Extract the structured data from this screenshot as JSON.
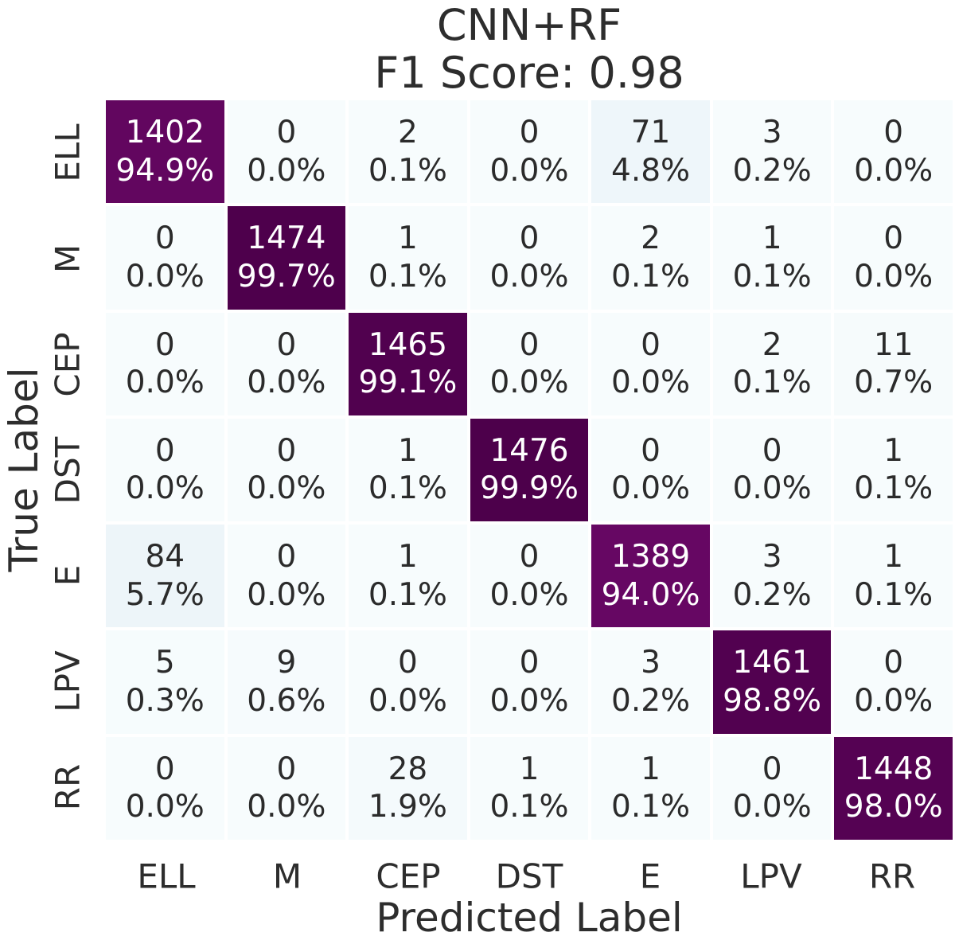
{
  "title": {
    "line1": "CNN+RF",
    "line2": "F1 Score: 0.98"
  },
  "chart_data": {
    "type": "heatmap",
    "title_line1": "CNN+RF",
    "title_line2": "F1 Score: 0.98",
    "xlabel": "Predicted Label",
    "ylabel": "True Label",
    "categories": [
      "ELL",
      "M",
      "CEP",
      "DST",
      "E",
      "LPV",
      "RR"
    ],
    "rows": [
      {
        "label": "ELL",
        "counts": [
          1402,
          0,
          2,
          0,
          71,
          3,
          0
        ],
        "percents": [
          "94.9%",
          "0.0%",
          "0.1%",
          "0.0%",
          "4.8%",
          "0.2%",
          "0.0%"
        ]
      },
      {
        "label": "M",
        "counts": [
          0,
          1474,
          1,
          0,
          2,
          1,
          0
        ],
        "percents": [
          "0.0%",
          "99.7%",
          "0.1%",
          "0.0%",
          "0.1%",
          "0.1%",
          "0.0%"
        ]
      },
      {
        "label": "CEP",
        "counts": [
          0,
          0,
          1465,
          0,
          0,
          2,
          11
        ],
        "percents": [
          "0.0%",
          "0.0%",
          "99.1%",
          "0.0%",
          "0.0%",
          "0.1%",
          "0.7%"
        ]
      },
      {
        "label": "DST",
        "counts": [
          0,
          0,
          1,
          1476,
          0,
          0,
          1
        ],
        "percents": [
          "0.0%",
          "0.0%",
          "0.1%",
          "99.9%",
          "0.0%",
          "0.0%",
          "0.1%"
        ]
      },
      {
        "label": "E",
        "counts": [
          84,
          0,
          1,
          0,
          1389,
          3,
          1
        ],
        "percents": [
          "5.7%",
          "0.0%",
          "0.1%",
          "0.0%",
          "94.0%",
          "0.2%",
          "0.1%"
        ]
      },
      {
        "label": "LPV",
        "counts": [
          5,
          9,
          0,
          0,
          3,
          1461,
          0
        ],
        "percents": [
          "0.3%",
          "0.6%",
          "0.0%",
          "0.0%",
          "0.2%",
          "98.8%",
          "0.0%"
        ]
      },
      {
        "label": "RR",
        "counts": [
          0,
          0,
          28,
          1,
          1,
          0,
          1448
        ],
        "percents": [
          "0.0%",
          "0.0%",
          "1.9%",
          "0.1%",
          "0.1%",
          "0.0%",
          "98.0%"
        ]
      }
    ],
    "value_range": [
      0,
      100
    ],
    "grid": false,
    "legend": "none",
    "colormap": {
      "name": "BuPu",
      "stops": [
        [
          0.0,
          "#f7fcfd"
        ],
        [
          0.125,
          "#e0ecf4"
        ],
        [
          0.25,
          "#bfd3e6"
        ],
        [
          0.375,
          "#9ebcda"
        ],
        [
          0.5,
          "#8c96c6"
        ],
        [
          0.625,
          "#8c6bb1"
        ],
        [
          0.75,
          "#88419d"
        ],
        [
          0.875,
          "#810f7c"
        ],
        [
          1.0,
          "#4d004b"
        ]
      ]
    }
  },
  "colors": {
    "background": "#ffffff",
    "text_dark": "#2b2b2b",
    "text_light": "#ffffff",
    "label_color": "#2d2d2d",
    "diagonal_dark": "#4d004b"
  }
}
